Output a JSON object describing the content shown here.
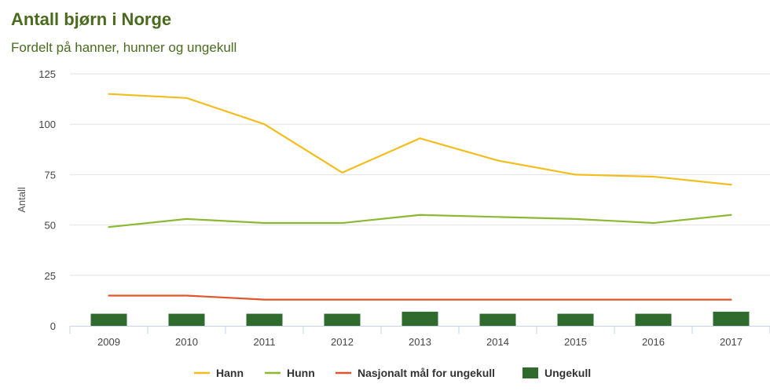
{
  "header": {
    "title": "Antall bjørn i Norge",
    "subtitle": "Fordelt på hanner, hunner og ungekull"
  },
  "colors": {
    "title": "#4a6b1f",
    "hann": "#f2bd1d",
    "hunn": "#8cb934",
    "nasjonalt": "#e0562a",
    "ungekull": "#2f6b2c",
    "grid": "#e2e2e2",
    "axis": "#c7d3e3"
  },
  "chart_data": {
    "type": "line",
    "title": "Antall bjørn i Norge",
    "subtitle": "Fordelt på hanner, hunner og ungekull",
    "xlabel": "",
    "ylabel": "Antall",
    "categories": [
      "2009",
      "2010",
      "2011",
      "2012",
      "2013",
      "2014",
      "2015",
      "2016",
      "2017"
    ],
    "yticks": [
      "0",
      "25",
      "50",
      "75",
      "100",
      "125"
    ],
    "ylim": [
      0,
      125
    ],
    "grid": true,
    "legend_position": "bottom-center",
    "series": [
      {
        "name": "Hann",
        "type": "line",
        "color": "#f2bd1d",
        "values": [
          115,
          113,
          100,
          76,
          93,
          82,
          75,
          74,
          70
        ]
      },
      {
        "name": "Hunn",
        "type": "line",
        "color": "#8cb934",
        "values": [
          49,
          53,
          51,
          51,
          55,
          54,
          53,
          51,
          55
        ]
      },
      {
        "name": "Nasjonalt mål for ungekull",
        "type": "line",
        "color": "#e0562a",
        "values": [
          15,
          15,
          13,
          13,
          13,
          13,
          13,
          13,
          13
        ]
      },
      {
        "name": "Ungekull",
        "type": "bar",
        "color": "#2f6b2c",
        "values": [
          6,
          6,
          6,
          6,
          7,
          6,
          6,
          6,
          7
        ]
      }
    ]
  }
}
